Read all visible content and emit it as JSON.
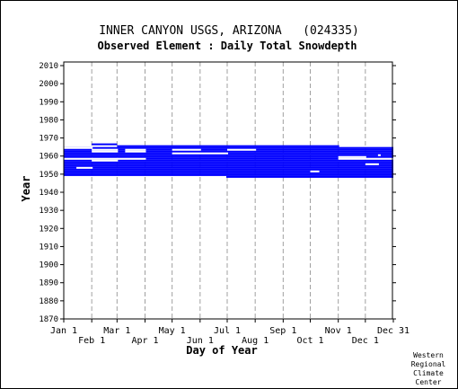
{
  "chart_data": {
    "type": "bar",
    "title": "INNER CANYON USGS, ARIZONA   (024335)",
    "subtitle": "Observed Element : Daily Total Snowdepth",
    "xlabel": "Day of Year",
    "ylabel": "Year",
    "xlim": [
      "Jan 1",
      "Dec 31"
    ],
    "ylim": [
      1870,
      2012
    ],
    "y_ticks": [
      1870,
      1880,
      1890,
      1900,
      1910,
      1920,
      1930,
      1940,
      1950,
      1960,
      1970,
      1980,
      1990,
      2000,
      2010
    ],
    "x_ticks_top_row": [
      "Jan 1",
      "Mar 1",
      "May 1",
      "Jul 1",
      "Sep 1",
      "Nov 1",
      "Dec 31"
    ],
    "x_ticks_bottom_row": [
      "Feb 1",
      "Apr 1",
      "Jun 1",
      "Aug 1",
      "Oct 1",
      "Dec 1"
    ],
    "grid": "vertical dashed at month starts",
    "bar_color": "#0000ff",
    "coverage_years": [
      1948,
      1966
    ],
    "observed_years": [
      {
        "year": 1966,
        "from": "Feb 1",
        "to": "Feb 28"
      },
      {
        "year": 1965,
        "from": "Mar 1",
        "to": "Nov 1"
      },
      {
        "year": 1964,
        "from": "Jan 1",
        "to": "Dec 31"
      },
      {
        "year": 1963,
        "from": "Jan 1",
        "to": "Dec 31"
      },
      {
        "year": 1962,
        "from": "Jan 1",
        "to": "Dec 31"
      },
      {
        "year": 1961,
        "from": "Jan 1",
        "to": "Dec 31"
      },
      {
        "year": 1960,
        "from": "Jan 1",
        "to": "Dec 31"
      },
      {
        "year": 1959,
        "from": "Jan 1",
        "to": "Dec 31"
      },
      {
        "year": 1958,
        "from": "Jan 1",
        "to": "Dec 31"
      },
      {
        "year": 1957,
        "from": "Jan 1",
        "to": "Dec 31"
      },
      {
        "year": 1956,
        "from": "Jan 1",
        "to": "Dec 31"
      },
      {
        "year": 1955,
        "from": "Jan 1",
        "to": "Dec 31"
      },
      {
        "year": 1954,
        "from": "Jan 1",
        "to": "Dec 31"
      },
      {
        "year": 1953,
        "from": "Jan 1",
        "to": "Dec 31"
      },
      {
        "year": 1952,
        "from": "Jan 1",
        "to": "Dec 31"
      },
      {
        "year": 1951,
        "from": "Jan 1",
        "to": "Dec 31"
      },
      {
        "year": 1950,
        "from": "Jan 1",
        "to": "Dec 31"
      },
      {
        "year": 1949,
        "from": "Jan 1",
        "to": "Dec 31"
      },
      {
        "year": 1948,
        "from": "Jun 30",
        "to": "Dec 31"
      }
    ],
    "missing_gaps": [
      {
        "year": 1964,
        "from": "Jan 1",
        "to": "Feb 1"
      },
      {
        "year": 1958,
        "from": "Jan 1",
        "to": "Feb 1"
      },
      {
        "year": 1953,
        "from": "Jan 15",
        "to": "Feb 1"
      },
      {
        "year": 1963,
        "from": "Feb 1",
        "to": "Mar 1"
      },
      {
        "year": 1962,
        "from": "Feb 1",
        "to": "Mar 1"
      },
      {
        "year": 1958,
        "from": "Feb 1",
        "to": "Mar 1"
      },
      {
        "year": 1957,
        "from": "Feb 1",
        "to": "Mar 1"
      },
      {
        "year": 1963,
        "from": "Mar 10",
        "to": "Apr 1"
      },
      {
        "year": 1962,
        "from": "Mar 10",
        "to": "Apr 1"
      },
      {
        "year": 1958,
        "from": "Mar 1",
        "to": "Apr 1"
      },
      {
        "year": 1963,
        "from": "May 1",
        "to": "Jun 1"
      },
      {
        "year": 1961,
        "from": "May 1",
        "to": "Jul 1"
      },
      {
        "year": 1963,
        "from": "Jul 1",
        "to": "Aug 1"
      },
      {
        "year": 1951,
        "from": "Oct 1",
        "to": "Oct 10"
      },
      {
        "year": 1959,
        "from": "Nov 1",
        "to": "Dec 1"
      },
      {
        "year": 1958,
        "from": "Nov 1",
        "to": "Dec 31"
      },
      {
        "year": 1955,
        "from": "Dec 1",
        "to": "Dec 15"
      },
      {
        "year": 1960,
        "from": "Dec 15",
        "to": "Dec 17"
      }
    ]
  },
  "credit": [
    "Western",
    "Regional",
    "Climate",
    "Center"
  ]
}
